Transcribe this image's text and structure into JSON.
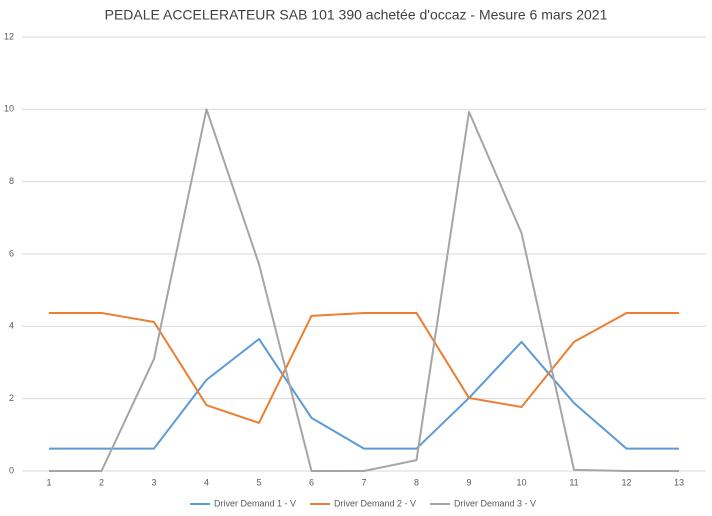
{
  "chart_data": {
    "type": "line",
    "title": "PEDALE ACCELERATEUR SAB 101 390 achetée d'occaz - Mesure 6 mars 2021",
    "x": [
      1,
      2,
      3,
      4,
      5,
      6,
      7,
      8,
      9,
      10,
      11,
      12,
      13
    ],
    "xlim": [
      1,
      13
    ],
    "xticks": [
      1,
      2,
      3,
      4,
      5,
      6,
      7,
      8,
      9,
      10,
      11,
      12,
      13
    ],
    "ylim": [
      0,
      12
    ],
    "yticks": [
      0,
      2,
      4,
      6,
      8,
      10,
      12
    ],
    "grid": true,
    "legend": "bottom",
    "series": [
      {
        "name": "Driver Demand 1 - V",
        "color": "#5b9bd5",
        "values": [
          0.62,
          0.62,
          0.62,
          2.52,
          3.65,
          1.47,
          0.62,
          0.62,
          2.02,
          3.57,
          1.88,
          0.62,
          0.62
        ]
      },
      {
        "name": "Driver Demand 2 - V",
        "color": "#ed7d31",
        "values": [
          4.37,
          4.37,
          4.12,
          1.82,
          1.33,
          4.29,
          4.37,
          4.37,
          2.02,
          1.77,
          3.57,
          4.37,
          4.37
        ]
      },
      {
        "name": "Driver Demand 3 - V",
        "color": "#a5a5a5",
        "values": [
          0,
          0,
          3.1,
          10,
          5.72,
          0,
          0,
          0.3,
          9.93,
          6.58,
          0.03,
          0,
          0
        ]
      }
    ]
  }
}
